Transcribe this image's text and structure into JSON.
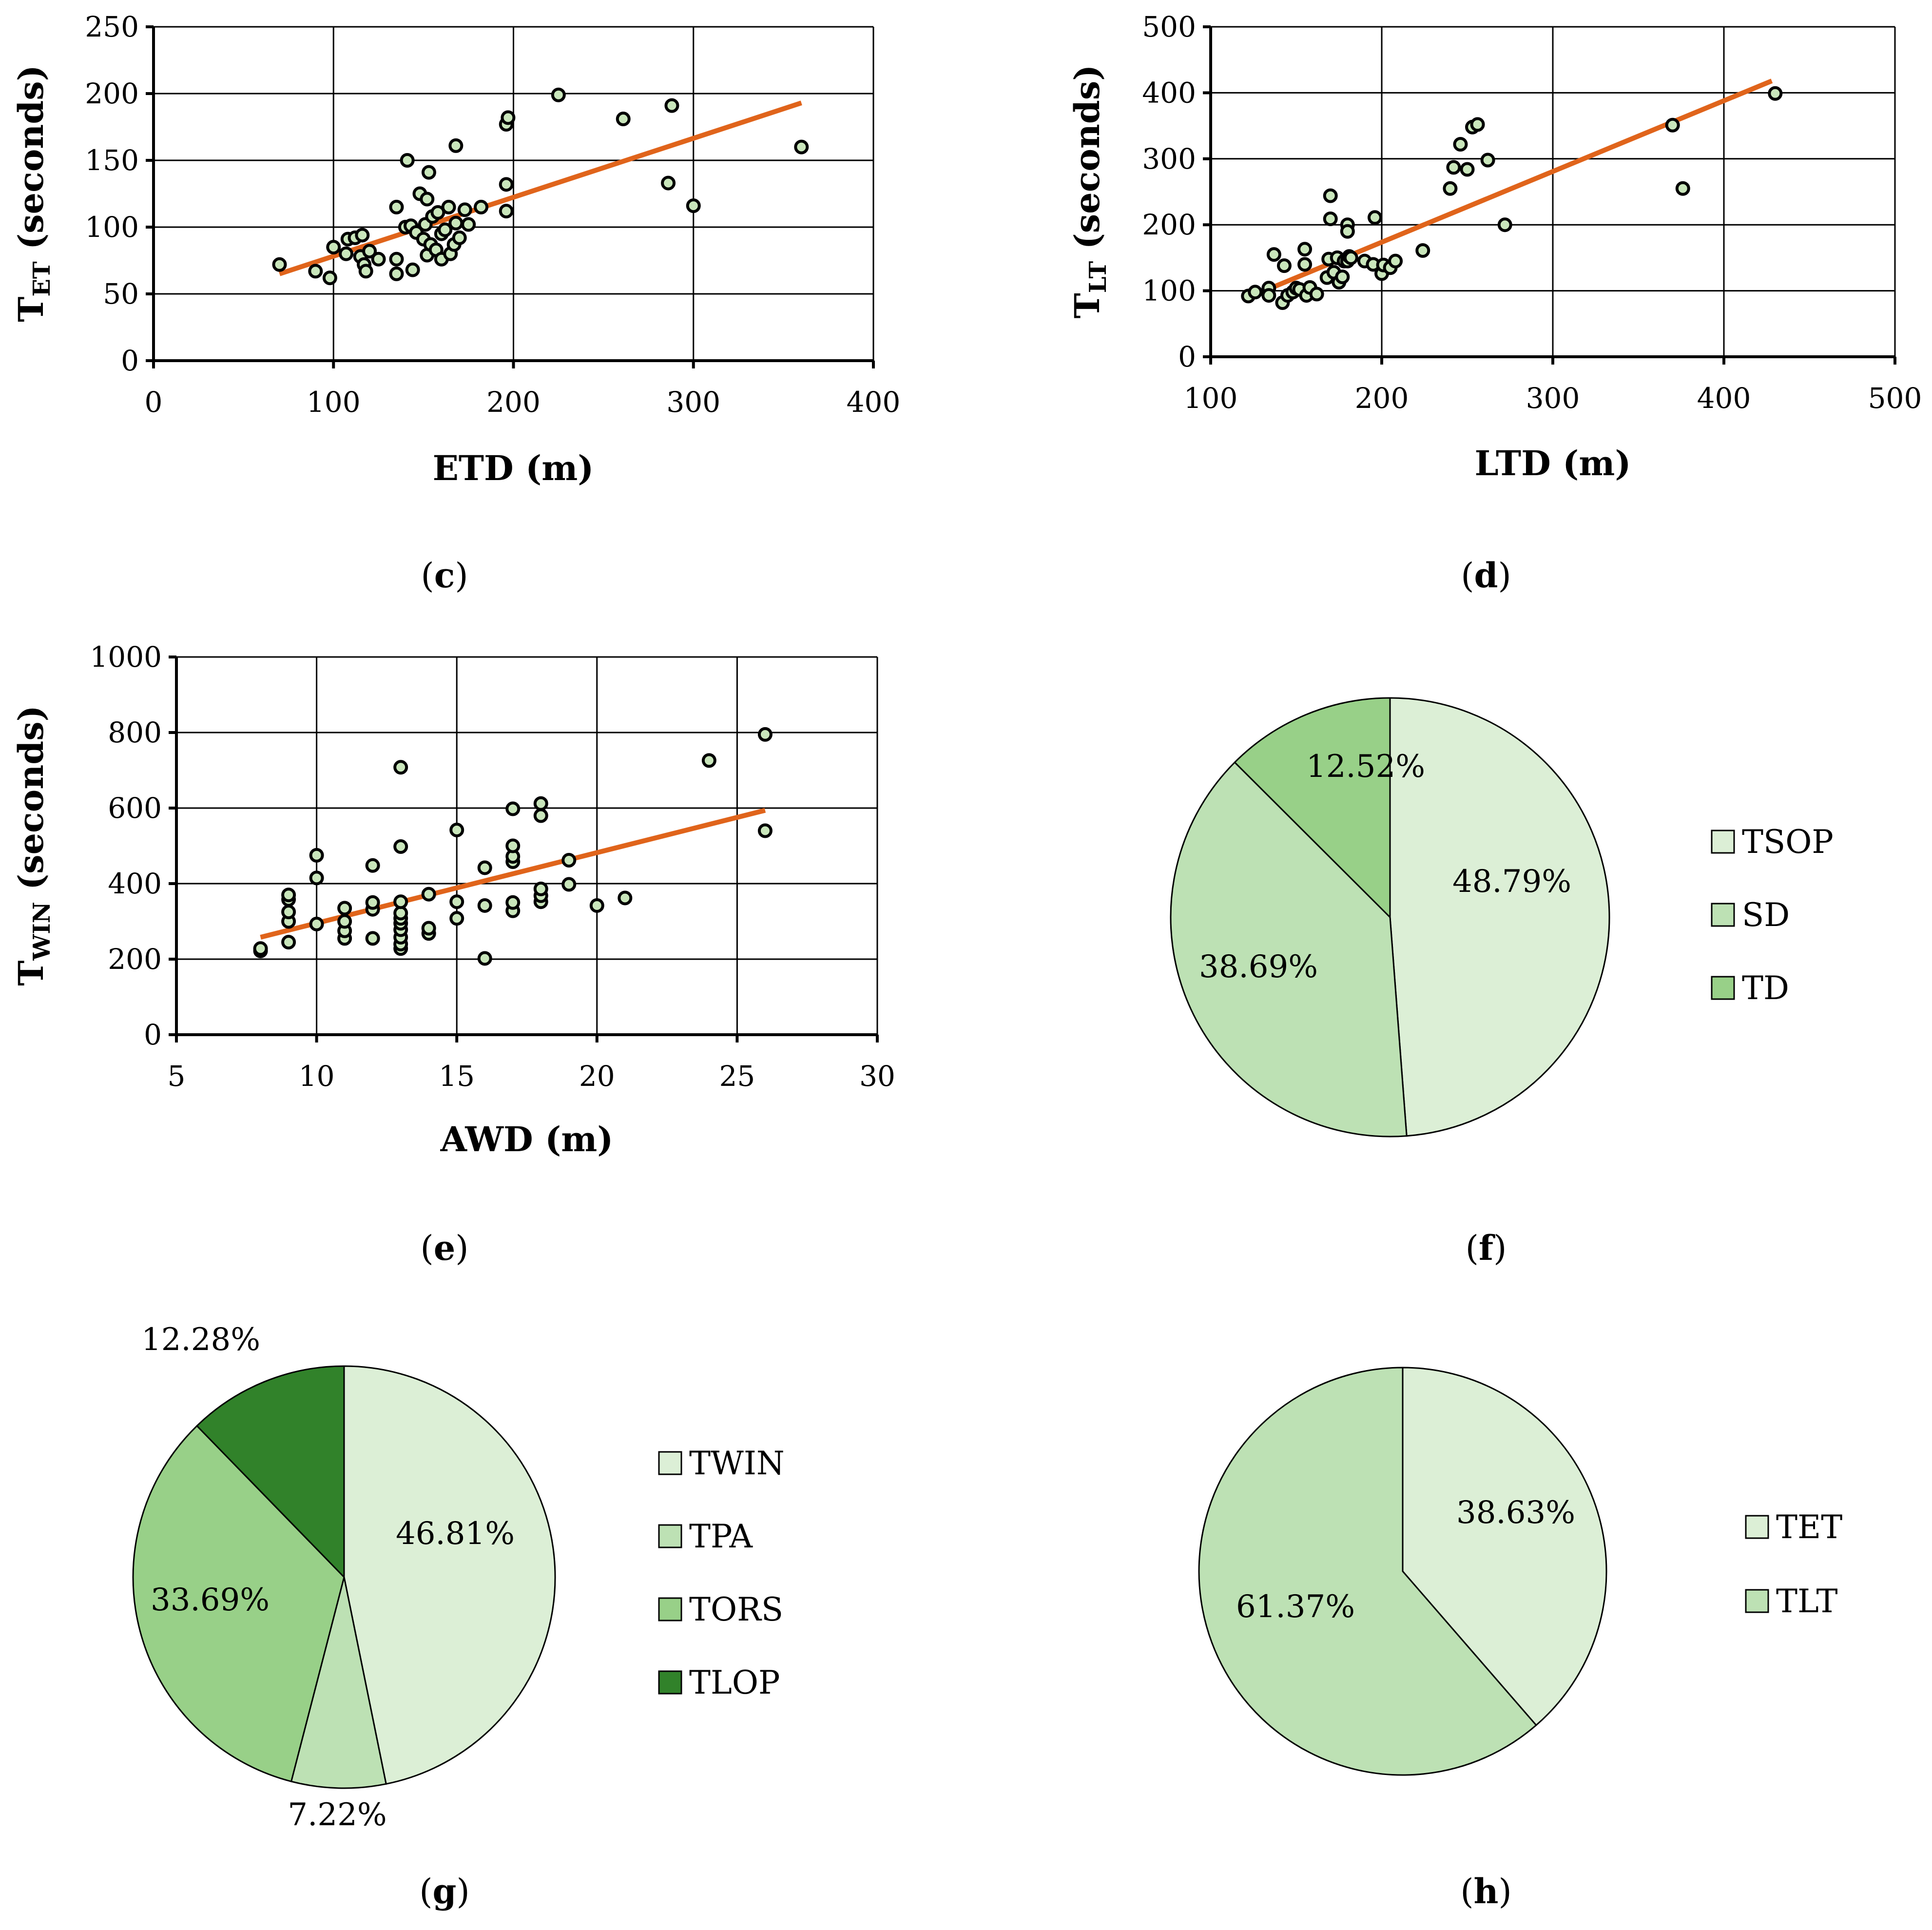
{
  "chart_data": [
    {
      "id": "c",
      "type": "scatter",
      "panel_label": "c",
      "xlabel": "ETD (m)",
      "ylabel": {
        "main": "T",
        "sub": "ET",
        "rest": " (seconds)"
      },
      "xlim": [
        0,
        400
      ],
      "xticks": [
        0,
        100,
        200,
        300,
        400
      ],
      "ylim": [
        0,
        250
      ],
      "yticks": [
        0,
        50,
        100,
        150,
        200,
        250
      ],
      "grid": true,
      "trendline": {
        "x": [
          70,
          360
        ],
        "y": [
          65,
          193
        ]
      },
      "points": [
        [
          70,
          72
        ],
        [
          90,
          67
        ],
        [
          98,
          62
        ],
        [
          100,
          85
        ],
        [
          107,
          80
        ],
        [
          108,
          91
        ],
        [
          112,
          92
        ],
        [
          115,
          78
        ],
        [
          116,
          94
        ],
        [
          117,
          72
        ],
        [
          118,
          67
        ],
        [
          120,
          82
        ],
        [
          125,
          76
        ],
        [
          135,
          65
        ],
        [
          135,
          76
        ],
        [
          135,
          115
        ],
        [
          140,
          100
        ],
        [
          141,
          150
        ],
        [
          143,
          101
        ],
        [
          144,
          68
        ],
        [
          146,
          96
        ],
        [
          148,
          125
        ],
        [
          150,
          91
        ],
        [
          151,
          102
        ],
        [
          152,
          79
        ],
        [
          152,
          121
        ],
        [
          153,
          141
        ],
        [
          154,
          87
        ],
        [
          155,
          108
        ],
        [
          157,
          83
        ],
        [
          158,
          111
        ],
        [
          160,
          76
        ],
        [
          160,
          95
        ],
        [
          162,
          98
        ],
        [
          164,
          115
        ],
        [
          165,
          80
        ],
        [
          167,
          87
        ],
        [
          168,
          161
        ],
        [
          168,
          103
        ],
        [
          170,
          92
        ],
        [
          173,
          113
        ],
        [
          175,
          102
        ],
        [
          182,
          115
        ],
        [
          196,
          132
        ],
        [
          196,
          112
        ],
        [
          196,
          177
        ],
        [
          197,
          182
        ],
        [
          225,
          199
        ],
        [
          261,
          181
        ],
        [
          286,
          133
        ],
        [
          288,
          191
        ],
        [
          300,
          116
        ],
        [
          360,
          160
        ]
      ]
    },
    {
      "id": "d",
      "type": "scatter",
      "panel_label": "d",
      "xlabel": "LTD (m)",
      "ylabel": {
        "main": "T",
        "sub": "LT",
        "rest": " (seconds)"
      },
      "xlim": [
        100,
        500
      ],
      "xticks": [
        100,
        200,
        300,
        400,
        500
      ],
      "ylim": [
        0,
        500
      ],
      "yticks": [
        0,
        100,
        200,
        300,
        400,
        500
      ],
      "grid": true,
      "trendline": {
        "x": [
          122,
          428
        ],
        "y": [
          90,
          418
        ]
      },
      "points": [
        [
          122,
          92
        ],
        [
          126,
          98
        ],
        [
          134,
          104
        ],
        [
          134,
          93
        ],
        [
          137,
          155
        ],
        [
          142,
          82
        ],
        [
          143,
          138
        ],
        [
          145,
          93
        ],
        [
          148,
          98
        ],
        [
          150,
          104
        ],
        [
          152,
          102
        ],
        [
          155,
          163
        ],
        [
          155,
          140
        ],
        [
          156,
          93
        ],
        [
          158,
          105
        ],
        [
          162,
          95
        ],
        [
          168,
          120
        ],
        [
          169,
          148
        ],
        [
          170,
          209
        ],
        [
          170,
          244
        ],
        [
          172,
          128
        ],
        [
          174,
          150
        ],
        [
          175,
          113
        ],
        [
          177,
          121
        ],
        [
          178,
          145
        ],
        [
          180,
          200
        ],
        [
          180,
          145
        ],
        [
          180,
          190
        ],
        [
          181,
          152
        ],
        [
          182,
          150
        ],
        [
          190,
          145
        ],
        [
          195,
          140
        ],
        [
          196,
          211
        ],
        [
          200,
          126
        ],
        [
          201,
          139
        ],
        [
          205,
          135
        ],
        [
          208,
          145
        ],
        [
          224,
          161
        ],
        [
          240,
          255
        ],
        [
          242,
          287
        ],
        [
          246,
          322
        ],
        [
          250,
          284
        ],
        [
          253,
          348
        ],
        [
          256,
          352
        ],
        [
          262,
          298
        ],
        [
          272,
          200
        ],
        [
          370,
          351
        ],
        [
          376,
          255
        ],
        [
          430,
          399
        ]
      ]
    },
    {
      "id": "e",
      "type": "scatter",
      "panel_label": "e",
      "xlabel": "AWD (m)",
      "ylabel": {
        "main": "T",
        "sub": "WIN",
        "rest": " (seconds)"
      },
      "xlim": [
        5,
        30
      ],
      "xticks": [
        5,
        10,
        15,
        20,
        25,
        30
      ],
      "ylim": [
        0,
        1000
      ],
      "yticks": [
        0,
        200,
        400,
        600,
        800,
        1000
      ],
      "grid": true,
      "trendline": {
        "x": [
          8,
          26
        ],
        "y": [
          258,
          594
        ]
      },
      "points": [
        [
          8,
          222
        ],
        [
          8,
          228
        ],
        [
          9,
          245
        ],
        [
          9,
          300
        ],
        [
          9,
          325
        ],
        [
          9,
          358
        ],
        [
          9,
          370
        ],
        [
          10,
          293
        ],
        [
          10,
          415
        ],
        [
          10,
          475
        ],
        [
          11,
          255
        ],
        [
          11,
          275
        ],
        [
          11,
          300
        ],
        [
          11,
          335
        ],
        [
          12,
          255
        ],
        [
          12,
          332
        ],
        [
          12,
          350
        ],
        [
          12,
          448
        ],
        [
          13,
          228
        ],
        [
          13,
          240
        ],
        [
          13,
          258
        ],
        [
          13,
          278
        ],
        [
          13,
          295
        ],
        [
          13,
          308
        ],
        [
          13,
          322
        ],
        [
          13,
          352
        ],
        [
          13,
          498
        ],
        [
          13,
          708
        ],
        [
          14,
          268
        ],
        [
          14,
          282
        ],
        [
          14,
          372
        ],
        [
          15,
          308
        ],
        [
          15,
          352
        ],
        [
          15,
          542
        ],
        [
          16,
          202
        ],
        [
          16,
          342
        ],
        [
          16,
          442
        ],
        [
          17,
          328
        ],
        [
          17,
          350
        ],
        [
          17,
          458
        ],
        [
          17,
          472
        ],
        [
          17,
          500
        ],
        [
          17,
          598
        ],
        [
          18,
          352
        ],
        [
          18,
          368
        ],
        [
          18,
          386
        ],
        [
          18,
          580
        ],
        [
          18,
          612
        ],
        [
          19,
          398
        ],
        [
          19,
          462
        ],
        [
          20,
          342
        ],
        [
          21,
          362
        ],
        [
          24,
          726
        ],
        [
          26,
          540
        ],
        [
          26,
          795
        ]
      ]
    },
    {
      "id": "f",
      "type": "pie",
      "panel_label": "f",
      "slices": [
        {
          "name": "TSOP",
          "value": 48.79,
          "label": "48.79%",
          "color": "#dcefd6"
        },
        {
          "name": "SD",
          "value": 38.69,
          "label": "38.69%",
          "color": "#bde1b4"
        },
        {
          "name": "TD",
          "value": 12.52,
          "label": "12.52%",
          "color": "#98d088"
        }
      ],
      "legend": [
        "TSOP",
        "SD",
        "TD"
      ]
    },
    {
      "id": "g",
      "type": "pie",
      "panel_label": "g",
      "slices": [
        {
          "name": "TWIN",
          "value": 46.81,
          "label": "46.81%",
          "color": "#dcefd6"
        },
        {
          "name": "TPA",
          "value": 7.22,
          "label": "7.22%",
          "color": "#bde1b4"
        },
        {
          "name": "TORS",
          "value": 33.69,
          "label": "33.69%",
          "color": "#98d088"
        },
        {
          "name": "TLOP",
          "value": 12.28,
          "label": "12.28%",
          "color": "#31822a"
        }
      ],
      "legend": [
        "TWIN",
        "TPA",
        "TORS",
        "TLOP"
      ]
    },
    {
      "id": "h",
      "type": "pie",
      "panel_label": "h",
      "slices": [
        {
          "name": "TET",
          "value": 38.63,
          "label": "38.63%",
          "color": "#dcefd6"
        },
        {
          "name": "TLT",
          "value": 61.37,
          "label": "61.37%",
          "color": "#bde1b4"
        }
      ],
      "legend": [
        "TET",
        "TLT"
      ]
    }
  ]
}
